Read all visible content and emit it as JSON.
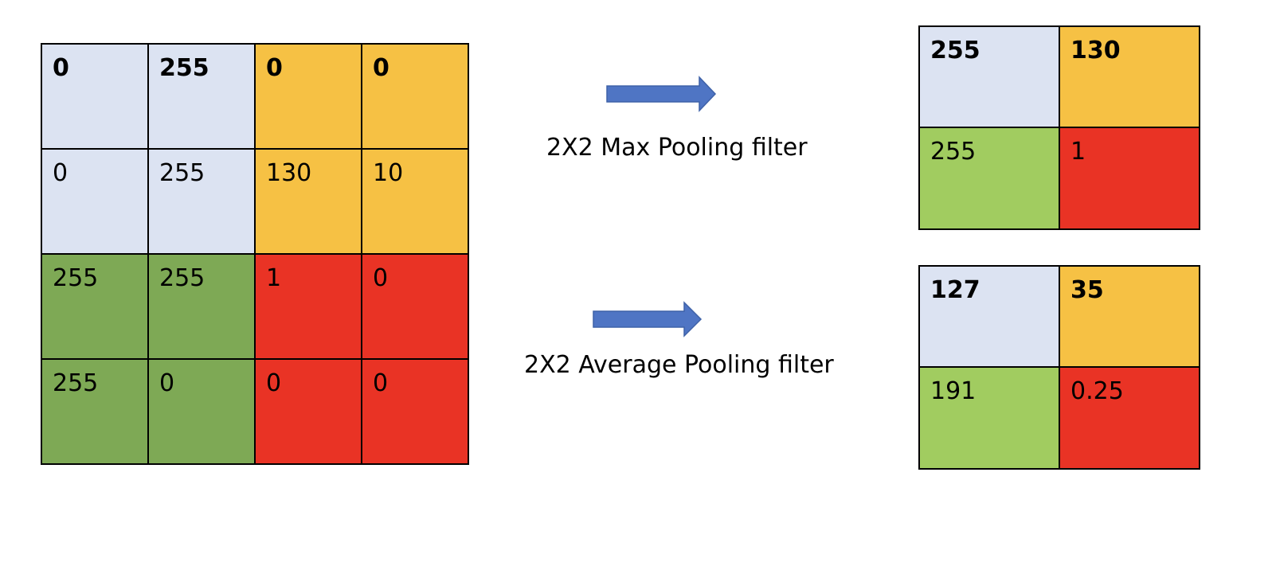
{
  "colors": {
    "blue": "#dce3f2",
    "orange": "#f6c144",
    "green_dark": "#7ea955",
    "green_light": "#a1cc60",
    "red": "#e93325",
    "arrow": "#4f75c4"
  },
  "input_grid": {
    "rows": [
      [
        {
          "value": "0",
          "color": "blue",
          "bold": true
        },
        {
          "value": "255",
          "color": "blue",
          "bold": true
        },
        {
          "value": "0",
          "color": "orange",
          "bold": true
        },
        {
          "value": "0",
          "color": "orange",
          "bold": true
        }
      ],
      [
        {
          "value": "0",
          "color": "blue",
          "bold": false
        },
        {
          "value": "255",
          "color": "blue",
          "bold": false
        },
        {
          "value": "130",
          "color": "orange",
          "bold": false
        },
        {
          "value": "10",
          "color": "orange",
          "bold": false
        }
      ],
      [
        {
          "value": "255",
          "color": "green_dark",
          "bold": false
        },
        {
          "value": "255",
          "color": "green_dark",
          "bold": false
        },
        {
          "value": "1",
          "color": "red",
          "bold": false
        },
        {
          "value": "0",
          "color": "red",
          "bold": false
        }
      ],
      [
        {
          "value": "255",
          "color": "green_dark",
          "bold": false
        },
        {
          "value": "0",
          "color": "green_dark",
          "bold": false
        },
        {
          "value": "0",
          "color": "red",
          "bold": false
        },
        {
          "value": "0",
          "color": "red",
          "bold": false
        }
      ]
    ]
  },
  "max_pool": {
    "label": "2X2 Max Pooling filter",
    "rows": [
      [
        {
          "value": "255",
          "color": "blue",
          "bold": true
        },
        {
          "value": "130",
          "color": "orange",
          "bold": true
        }
      ],
      [
        {
          "value": "255",
          "color": "green_light",
          "bold": false
        },
        {
          "value": "1",
          "color": "red",
          "bold": false
        }
      ]
    ]
  },
  "avg_pool": {
    "label": "2X2 Average Pooling filter",
    "rows": [
      [
        {
          "value": "127",
          "color": "blue",
          "bold": true
        },
        {
          "value": "35",
          "color": "orange",
          "bold": true
        }
      ],
      [
        {
          "value": "191",
          "color": "green_light",
          "bold": false
        },
        {
          "value": "0.25",
          "color": "red",
          "bold": false
        }
      ]
    ]
  }
}
